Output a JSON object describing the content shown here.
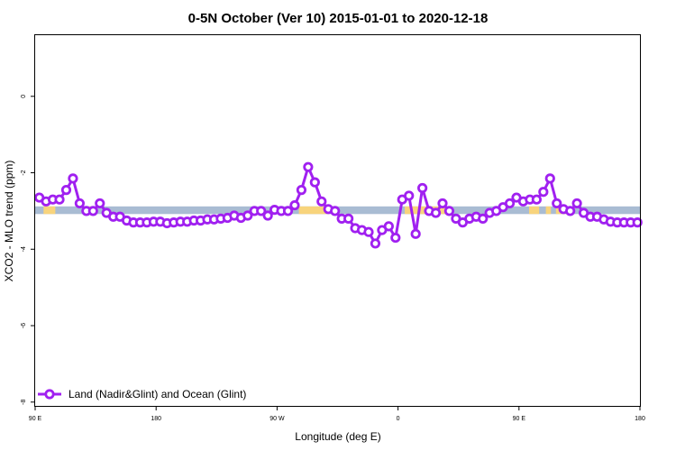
{
  "chart_data": {
    "type": "line",
    "title": "0-5N October (Ver 10)   2015-01-01 to 2020-12-18",
    "xlabel": "Longitude (deg E)",
    "ylabel": "XCO2 - MLO trend (ppm)",
    "xlim": [
      90,
      450
    ],
    "ylim": [
      -8.1,
      1.6
    ],
    "x_ticks": [
      {
        "value": 90,
        "label": "90 E"
      },
      {
        "value": 162,
        "label": "180"
      },
      {
        "value": 234,
        "label": "90 W"
      },
      {
        "value": 306,
        "label": "0"
      },
      {
        "value": 378,
        "label": "90 E"
      },
      {
        "value": 450,
        "label": "180"
      }
    ],
    "y_ticks": [
      {
        "value": 0,
        "label": "0"
      },
      {
        "value": -2,
        "label": "-2"
      },
      {
        "value": -4,
        "label": "-4"
      },
      {
        "value": -6,
        "label": "-6"
      },
      {
        "value": -8,
        "label": "-8"
      }
    ],
    "grid": false,
    "legend_position": "bottom-left",
    "background_band": {
      "y_range": [
        -3.08,
        -2.88
      ],
      "ocean_color": "#a9bcd3",
      "land_color": "#f8d47c",
      "land_segments": [
        [
          95,
          102
        ],
        [
          119,
          125
        ],
        [
          247,
          265
        ],
        [
          310,
          335
        ],
        [
          384,
          390
        ],
        [
          394,
          397
        ],
        [
          400,
          407
        ]
      ]
    },
    "series": [
      {
        "name": "Land (Nadir&Glint) and Ocean (Glint)",
        "color": "#a020f0",
        "x": [
          92.5,
          96.5,
          100.5,
          104.5,
          108.5,
          112.5,
          116.5,
          120.5,
          124.5,
          128.5,
          132.5,
          136.5,
          140.5,
          144.5,
          148.5,
          152.5,
          156.5,
          160.5,
          164.5,
          168.5,
          172.5,
          176.5,
          180.5,
          184.5,
          188.5,
          192.5,
          196.5,
          200.5,
          204.5,
          208.5,
          212.5,
          216.5,
          220.5,
          224.5,
          228.5,
          232.5,
          236.5,
          240.5,
          244.5,
          248.5,
          252.5,
          256.5,
          260.5,
          264.5,
          268.5,
          272.5,
          276.5,
          280.5,
          284.5,
          288.5,
          292.5,
          296.5,
          300.5,
          304.5,
          308.5,
          312.5,
          316.5,
          320.5,
          324.5,
          328.5,
          332.5,
          336.5,
          340.5,
          344.5,
          348.5,
          352.5,
          356.5,
          360.5,
          364.5,
          368.5,
          372.5,
          376.5,
          380.5,
          384.5,
          388.5,
          392.5,
          396.5,
          400.5,
          404.5,
          408.5,
          412.5,
          416.5,
          420.5,
          424.5,
          428.5,
          432.5,
          436.5,
          440.5,
          444.5,
          448.5
        ],
        "values": [
          -2.65,
          -2.75,
          -2.7,
          -2.7,
          -2.45,
          -2.15,
          -2.8,
          -3.0,
          -3.0,
          -2.8,
          -3.05,
          -3.15,
          -3.15,
          -3.25,
          -3.3,
          -3.3,
          -3.3,
          -3.28,
          -3.28,
          -3.32,
          -3.3,
          -3.28,
          -3.28,
          -3.25,
          -3.25,
          -3.22,
          -3.22,
          -3.2,
          -3.18,
          -3.12,
          -3.18,
          -3.12,
          -3.0,
          -3.0,
          -3.12,
          -2.97,
          -3.0,
          -3.0,
          -2.85,
          -2.45,
          -1.85,
          -2.25,
          -2.75,
          -2.95,
          -3.0,
          -3.2,
          -3.2,
          -3.45,
          -3.5,
          -3.55,
          -3.85,
          -3.5,
          -3.4,
          -3.7,
          -2.7,
          -2.6,
          -3.6,
          -2.4,
          -3.0,
          -3.05,
          -2.8,
          -3.0,
          -3.2,
          -3.3,
          -3.2,
          -3.15,
          -3.2,
          -3.05,
          -3.0,
          -2.9,
          -2.8,
          -2.65,
          -2.75,
          -2.7,
          -2.7,
          -2.5,
          -2.15,
          -2.8,
          -2.95,
          -3.0,
          -2.8,
          -3.05,
          -3.15,
          -3.15,
          -3.22,
          -3.28,
          -3.3,
          -3.3,
          -3.3,
          -3.3
        ]
      }
    ]
  }
}
